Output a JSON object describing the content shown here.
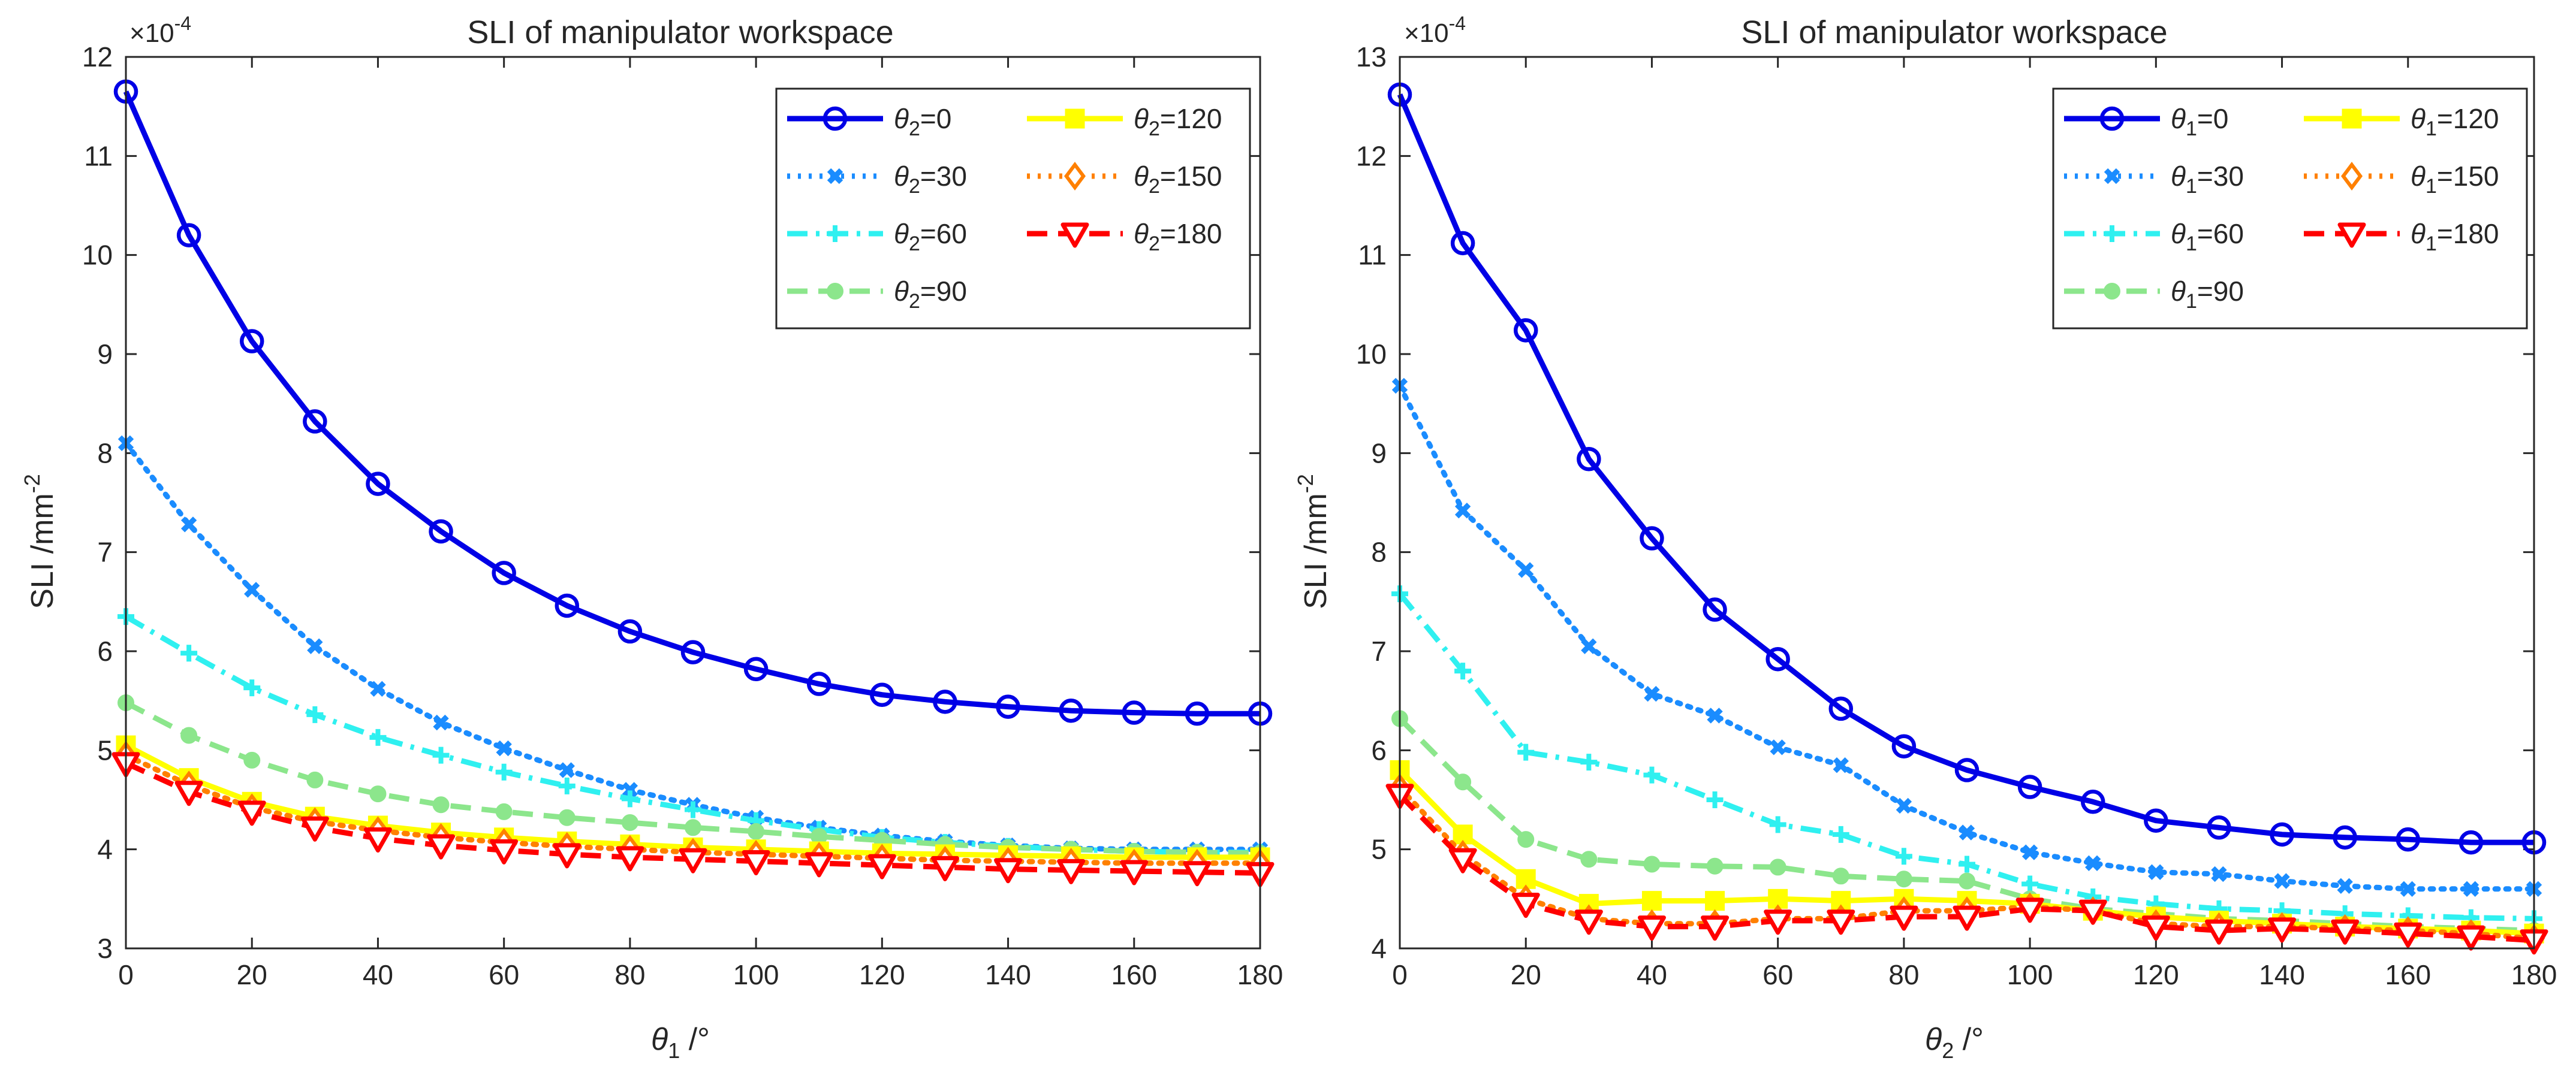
{
  "chart_data": [
    {
      "type": "line",
      "title": "SLI of manipulator workspace",
      "xlabel": {
        "symbol": "θ",
        "sub": "1",
        "unit": " /°"
      },
      "ylabel": {
        "base": "SLI /mm",
        "sup": "-2"
      },
      "exponent": {
        "base": "×10",
        "sup": "-4"
      },
      "xlim": [
        0,
        180
      ],
      "ylim": [
        3,
        12
      ],
      "xticks": [
        "0",
        "20",
        "40",
        "60",
        "80",
        "100",
        "120",
        "140",
        "160",
        "180"
      ],
      "yticks": [
        "3",
        "4",
        "5",
        "6",
        "7",
        "8",
        "9",
        "10",
        "11",
        "12"
      ],
      "legend_position": "top-right",
      "x": [
        0,
        10,
        20,
        30,
        40,
        50,
        60,
        70,
        80,
        90,
        100,
        110,
        120,
        130,
        140,
        150,
        160,
        170,
        180
      ],
      "series": [
        {
          "name": "θ2=0",
          "legend": {
            "symbol": "θ",
            "sub": "2",
            "value": "=0"
          },
          "color": "#0000e6",
          "dash": "solid",
          "marker": "circle",
          "values": [
            11.65,
            10.2,
            9.13,
            8.32,
            7.69,
            7.21,
            6.79,
            6.46,
            6.2,
            5.99,
            5.82,
            5.67,
            5.56,
            5.49,
            5.44,
            5.4,
            5.38,
            5.37,
            5.37
          ]
        },
        {
          "name": "θ2=30",
          "legend": {
            "symbol": "θ",
            "sub": "2",
            "value": "=30"
          },
          "color": "#1a8cff",
          "dash": "dotted",
          "marker": "x",
          "values": [
            8.1,
            7.28,
            6.62,
            6.05,
            5.62,
            5.28,
            5.02,
            4.8,
            4.6,
            4.45,
            4.32,
            4.22,
            4.14,
            4.08,
            4.04,
            4.01,
            4.0,
            4.0,
            4.0
          ]
        },
        {
          "name": "θ2=60",
          "legend": {
            "symbol": "θ",
            "sub": "2",
            "value": "=60"
          },
          "color": "#2ff0f0",
          "dash": "dashdot",
          "marker": "plus",
          "values": [
            6.35,
            5.98,
            5.63,
            5.36,
            5.13,
            4.95,
            4.78,
            4.64,
            4.51,
            4.4,
            4.29,
            4.2,
            4.12,
            4.07,
            4.03,
            4.0,
            3.98,
            3.97,
            3.97
          ]
        },
        {
          "name": "θ2=90",
          "legend": {
            "symbol": "θ",
            "sub": "2",
            "value": "=90"
          },
          "color": "#8ce68c",
          "dash": "dashed",
          "marker": "dot",
          "values": [
            5.48,
            5.15,
            4.9,
            4.7,
            4.56,
            4.45,
            4.38,
            4.32,
            4.27,
            4.22,
            4.18,
            4.13,
            4.09,
            4.05,
            4.02,
            4.0,
            3.98,
            3.97,
            3.96
          ]
        },
        {
          "name": "θ2=120",
          "legend": {
            "symbol": "θ",
            "sub": "2",
            "value": "=120"
          },
          "color": "#ffff00",
          "dash": "solid",
          "marker": "square",
          "values": [
            5.05,
            4.72,
            4.48,
            4.33,
            4.24,
            4.17,
            4.12,
            4.08,
            4.05,
            4.02,
            4.0,
            3.98,
            3.96,
            3.95,
            3.94,
            3.93,
            3.92,
            3.92,
            3.92
          ]
        },
        {
          "name": "θ2=150",
          "legend": {
            "symbol": "θ",
            "sub": "2",
            "value": "=150"
          },
          "color": "#ff8000",
          "dash": "dotted",
          "marker": "diamond",
          "values": [
            4.95,
            4.65,
            4.42,
            4.28,
            4.19,
            4.12,
            4.07,
            4.03,
            4.0,
            3.97,
            3.95,
            3.93,
            3.91,
            3.89,
            3.88,
            3.87,
            3.86,
            3.86,
            3.86
          ]
        },
        {
          "name": "θ2=180",
          "legend": {
            "symbol": "θ",
            "sub": "2",
            "value": "=180"
          },
          "color": "#ff0000",
          "dash": "dashed",
          "marker": "triangle",
          "values": [
            4.87,
            4.58,
            4.38,
            4.22,
            4.11,
            4.04,
            3.99,
            3.95,
            3.92,
            3.9,
            3.88,
            3.86,
            3.84,
            3.82,
            3.8,
            3.79,
            3.78,
            3.77,
            3.76
          ]
        }
      ]
    },
    {
      "type": "line",
      "title": "SLI of manipulator workspace",
      "xlabel": {
        "symbol": "θ",
        "sub": "2",
        "unit": " /°"
      },
      "ylabel": {
        "base": "SLI /mm",
        "sup": "-2"
      },
      "exponent": {
        "base": "×10",
        "sup": "-4"
      },
      "xlim": [
        0,
        180
      ],
      "ylim": [
        4,
        13
      ],
      "xticks": [
        "0",
        "20",
        "40",
        "60",
        "80",
        "100",
        "120",
        "140",
        "160",
        "180"
      ],
      "yticks": [
        "4",
        "5",
        "6",
        "7",
        "8",
        "9",
        "10",
        "11",
        "12",
        "13"
      ],
      "legend_position": "top-right",
      "x": [
        0,
        10,
        20,
        30,
        40,
        50,
        60,
        70,
        80,
        90,
        100,
        110,
        120,
        130,
        140,
        150,
        160,
        170,
        180
      ],
      "series": [
        {
          "name": "θ1=0",
          "legend": {
            "symbol": "θ",
            "sub": "1",
            "value": "=0"
          },
          "color": "#0000e6",
          "dash": "solid",
          "marker": "circle",
          "values": [
            12.62,
            11.12,
            10.24,
            8.94,
            8.14,
            7.42,
            6.92,
            6.42,
            6.04,
            5.8,
            5.63,
            5.48,
            5.29,
            5.22,
            5.15,
            5.12,
            5.1,
            5.07,
            5.07
          ]
        },
        {
          "name": "θ1=30",
          "legend": {
            "symbol": "θ",
            "sub": "1",
            "value": "=30"
          },
          "color": "#1a8cff",
          "dash": "dotted",
          "marker": "x",
          "values": [
            9.68,
            8.42,
            7.82,
            7.05,
            6.57,
            6.35,
            6.03,
            5.85,
            5.44,
            5.17,
            4.97,
            4.86,
            4.77,
            4.75,
            4.68,
            4.63,
            4.6,
            4.6,
            4.6
          ]
        },
        {
          "name": "θ1=60",
          "legend": {
            "symbol": "θ",
            "sub": "1",
            "value": "=60"
          },
          "color": "#2ff0f0",
          "dash": "dashdot",
          "marker": "plus",
          "values": [
            7.58,
            6.8,
            5.98,
            5.88,
            5.75,
            5.5,
            5.25,
            5.15,
            4.93,
            4.85,
            4.65,
            4.52,
            4.45,
            4.4,
            4.38,
            4.35,
            4.33,
            4.31,
            4.3
          ]
        },
        {
          "name": "θ1=90",
          "legend": {
            "symbol": "θ",
            "sub": "1",
            "value": "=90"
          },
          "color": "#8ce68c",
          "dash": "dashed",
          "marker": "dot",
          "values": [
            6.32,
            5.68,
            5.1,
            4.9,
            4.85,
            4.83,
            4.82,
            4.73,
            4.7,
            4.68,
            4.5,
            4.4,
            4.35,
            4.3,
            4.28,
            4.25,
            4.22,
            4.2,
            4.18
          ]
        },
        {
          "name": "θ1=120",
          "legend": {
            "symbol": "θ",
            "sub": "1",
            "value": "=120"
          },
          "color": "#ffff00",
          "dash": "solid",
          "marker": "square",
          "values": [
            5.8,
            5.15,
            4.7,
            4.45,
            4.48,
            4.48,
            4.5,
            4.48,
            4.5,
            4.48,
            4.45,
            4.38,
            4.32,
            4.28,
            4.25,
            4.22,
            4.2,
            4.18,
            4.15
          ]
        },
        {
          "name": "θ1=150",
          "legend": {
            "symbol": "θ",
            "sub": "1",
            "value": "=150"
          },
          "color": "#ff8000",
          "dash": "dotted",
          "marker": "diamond",
          "values": [
            5.62,
            4.95,
            4.5,
            4.3,
            4.25,
            4.25,
            4.3,
            4.3,
            4.38,
            4.38,
            4.42,
            4.38,
            4.25,
            4.22,
            4.22,
            4.2,
            4.18,
            4.15,
            4.1
          ]
        },
        {
          "name": "θ1=180",
          "legend": {
            "symbol": "θ",
            "sub": "1",
            "value": "=180"
          },
          "color": "#ff0000",
          "dash": "dashed",
          "marker": "triangle",
          "values": [
            5.55,
            4.9,
            4.45,
            4.28,
            4.22,
            4.22,
            4.28,
            4.28,
            4.32,
            4.32,
            4.4,
            4.38,
            4.22,
            4.18,
            4.2,
            4.18,
            4.15,
            4.12,
            4.08
          ]
        }
      ]
    }
  ]
}
